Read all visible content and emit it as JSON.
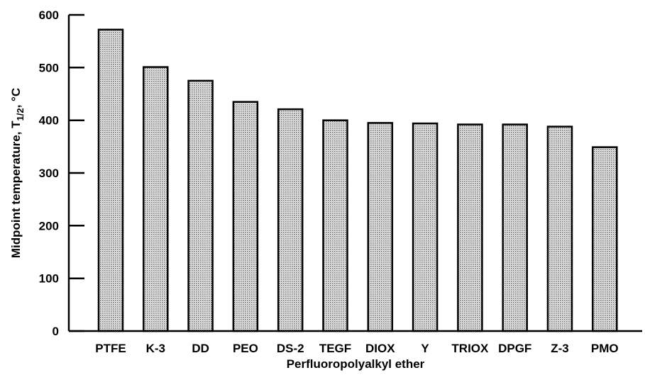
{
  "chart_data": {
    "type": "bar",
    "xlabel": "Perfluoropolyalkyl ether",
    "ylabel": "Midpoint temperature, T",
    "ylabel_subscript": "1/2",
    "ylabel_suffix": ", °C",
    "ylim": [
      0,
      600
    ],
    "yticks": [
      "0",
      "100",
      "200",
      "300",
      "400",
      "500",
      "600"
    ],
    "categories": [
      "PTFE",
      "K-3",
      "DD",
      "PEO",
      "DS-2",
      "TEGF",
      "DIOX",
      "Y",
      "TRIOX",
      "DPGF",
      "Z-3",
      "PMO"
    ],
    "values": [
      572,
      501,
      475,
      435,
      421,
      400,
      395,
      394,
      392,
      392,
      388,
      349
    ],
    "bar_fill": "#c8c8c8",
    "bar_edge": "#000000",
    "grid": false
  }
}
